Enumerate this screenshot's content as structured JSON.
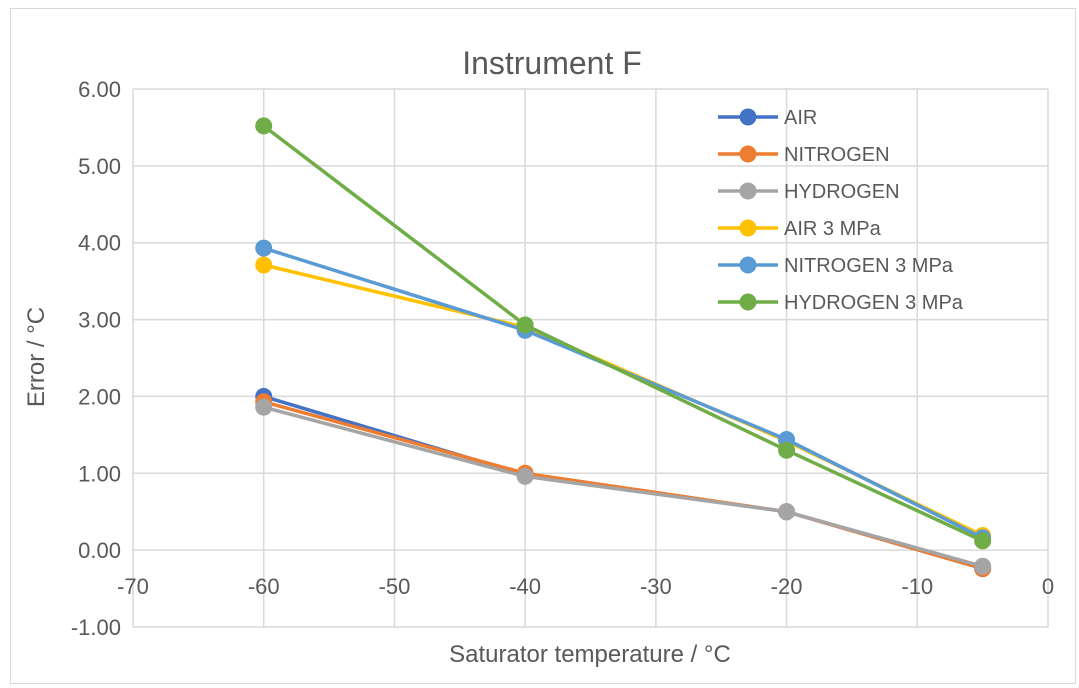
{
  "chart_data": {
    "type": "line",
    "title": "Instrument F",
    "xlabel": "Saturator temperature / °C",
    "ylabel": "Error / °C",
    "xlim": [
      -70,
      0
    ],
    "ylim": [
      -1.0,
      6.0
    ],
    "x_ticks": [
      "-70",
      "-60",
      "-50",
      "-40",
      "-30",
      "-20",
      "-10",
      "0"
    ],
    "y_ticks": [
      "6.00",
      "5.00",
      "4.00",
      "3.00",
      "2.00",
      "1.00",
      "0.00",
      "-1.00"
    ],
    "grid": true,
    "legend_position": "top-right",
    "series": [
      {
        "name": "AIR",
        "color": "#4472C4",
        "x": [
          -60,
          -40,
          -20,
          -5
        ],
        "y": [
          2.0,
          0.98,
          0.5,
          -0.24
        ]
      },
      {
        "name": "NITROGEN",
        "color": "#ED7D31",
        "x": [
          -60,
          -40,
          -20,
          -5
        ],
        "y": [
          1.93,
          1.0,
          0.5,
          -0.24
        ]
      },
      {
        "name": "HYDROGEN",
        "color": "#A5A5A5",
        "x": [
          -60,
          -40,
          -20,
          -5
        ],
        "y": [
          1.86,
          0.96,
          0.5,
          -0.21
        ]
      },
      {
        "name": "AIR 3 MPa",
        "color": "#FFC000",
        "x": [
          -60,
          -40,
          -20,
          -5
        ],
        "y": [
          3.71,
          2.9,
          1.42,
          0.19
        ]
      },
      {
        "name": "NITROGEN 3 MPa",
        "color": "#5B9BD5",
        "x": [
          -60,
          -40,
          -20,
          -5
        ],
        "y": [
          3.93,
          2.86,
          1.44,
          0.16
        ]
      },
      {
        "name": "HYDROGEN 3 MPa",
        "color": "#70AD47",
        "x": [
          -60,
          -40,
          -20,
          -5
        ],
        "y": [
          5.52,
          2.93,
          1.3,
          0.12
        ]
      }
    ]
  }
}
